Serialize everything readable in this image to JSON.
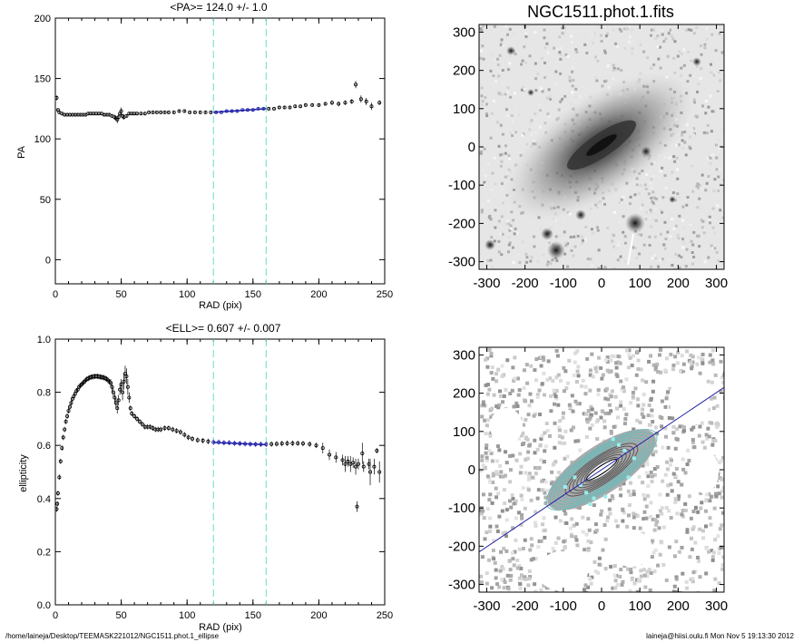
{
  "footer": {
    "path": "/home/laineja/Desktop/TEEMASK221012/NGC1511.phot.1_ellipse",
    "stamp": "laineja@hiisi.oulu.fi  Mon Nov  5 19:13:30 2012"
  },
  "colors": {
    "fit_line": "#2222aa",
    "range_line": "#66ddcc",
    "contour_outer": "#66bbbb"
  },
  "chart_data": [
    {
      "type": "scatter",
      "title": "<PA>= 124.0 +/-   1.0",
      "xlabel": "RAD (pix)",
      "ylabel": "PA",
      "xlim": [
        0,
        250
      ],
      "ylim": [
        -20,
        200
      ],
      "xticks": [
        0,
        50,
        100,
        150,
        200,
        250
      ],
      "yticks": [
        0,
        50,
        100,
        150,
        200
      ],
      "vlines": [
        120,
        160
      ],
      "points": [
        [
          1,
          134,
          2
        ],
        [
          2,
          124,
          1
        ],
        [
          3,
          122,
          1
        ],
        [
          5,
          121,
          1
        ],
        [
          7,
          120,
          1
        ],
        [
          9,
          120,
          1
        ],
        [
          11,
          120,
          1
        ],
        [
          13,
          120,
          1
        ],
        [
          15,
          120,
          1
        ],
        [
          17,
          120,
          1
        ],
        [
          19,
          120,
          1
        ],
        [
          21,
          120,
          1
        ],
        [
          23,
          120,
          1
        ],
        [
          25,
          121,
          1
        ],
        [
          27,
          121,
          1
        ],
        [
          29,
          121,
          1
        ],
        [
          31,
          121,
          1
        ],
        [
          33,
          121,
          1
        ],
        [
          35,
          121,
          1
        ],
        [
          37,
          120,
          1
        ],
        [
          39,
          120,
          1
        ],
        [
          41,
          120,
          1
        ],
        [
          43,
          119,
          1
        ],
        [
          45,
          118,
          2
        ],
        [
          46,
          117,
          2
        ],
        [
          47,
          116,
          3
        ],
        [
          48,
          118,
          2
        ],
        [
          49,
          121,
          2
        ],
        [
          50,
          123,
          3
        ],
        [
          51,
          119,
          2
        ],
        [
          52,
          118,
          2
        ],
        [
          54,
          119,
          1
        ],
        [
          56,
          121,
          1
        ],
        [
          58,
          121,
          1
        ],
        [
          60,
          121,
          1
        ],
        [
          62,
          121,
          1
        ],
        [
          65,
          121,
          1
        ],
        [
          68,
          121,
          1
        ],
        [
          71,
          122,
          1
        ],
        [
          74,
          122,
          1
        ],
        [
          77,
          122,
          1
        ],
        [
          80,
          122,
          1
        ],
        [
          83,
          122,
          1
        ],
        [
          86,
          122,
          1
        ],
        [
          90,
          122,
          1
        ],
        [
          94,
          123,
          1
        ],
        [
          98,
          123,
          1
        ],
        [
          102,
          122,
          1
        ],
        [
          106,
          122,
          1
        ],
        [
          110,
          122,
          1
        ],
        [
          114,
          122,
          1
        ],
        [
          118,
          122,
          1
        ],
        [
          122,
          122,
          1
        ],
        [
          126,
          122,
          1
        ],
        [
          130,
          123,
          1
        ],
        [
          134,
          123,
          1
        ],
        [
          138,
          123,
          1
        ],
        [
          142,
          124,
          1
        ],
        [
          146,
          124,
          1
        ],
        [
          150,
          124,
          1
        ],
        [
          154,
          125,
          1
        ],
        [
          158,
          125,
          1
        ],
        [
          162,
          125,
          1
        ],
        [
          166,
          125,
          1
        ],
        [
          170,
          126,
          1
        ],
        [
          174,
          126,
          1
        ],
        [
          178,
          126,
          1
        ],
        [
          182,
          127,
          1
        ],
        [
          186,
          127,
          1
        ],
        [
          190,
          128,
          1
        ],
        [
          195,
          128,
          1
        ],
        [
          200,
          128,
          1
        ],
        [
          205,
          129,
          1
        ],
        [
          210,
          130,
          2
        ],
        [
          215,
          129,
          2
        ],
        [
          220,
          130,
          2
        ],
        [
          225,
          131,
          2
        ],
        [
          228,
          145,
          3
        ],
        [
          232,
          133,
          3
        ],
        [
          236,
          131,
          3
        ],
        [
          240,
          127,
          3
        ],
        [
          246,
          130,
          2
        ]
      ],
      "fit_line": {
        "x": [
          120,
          160
        ],
        "y": [
          122,
          125
        ]
      }
    },
    {
      "type": "scatter",
      "title": "<ELL>= 0.607 +/-  0.007",
      "xlabel": "RAD (pix)",
      "ylabel": "ellipticity",
      "xlim": [
        0,
        250
      ],
      "ylim": [
        0,
        1.0
      ],
      "xticks": [
        0,
        50,
        100,
        150,
        200,
        250
      ],
      "yticks": [
        0.0,
        0.2,
        0.4,
        0.6,
        0.8,
        1.0
      ],
      "ytick_labels": [
        "0.0",
        "0.2",
        "0.4",
        "0.6",
        "0.8",
        "1.0"
      ],
      "vlines": [
        120,
        160
      ],
      "points": [
        [
          1,
          0.36,
          0.01
        ],
        [
          1.5,
          0.38,
          0.01
        ],
        [
          2,
          0.42,
          0.01
        ],
        [
          3,
          0.48,
          0.01
        ],
        [
          4,
          0.54,
          0.01
        ],
        [
          5,
          0.59,
          0.01
        ],
        [
          6,
          0.63,
          0.01
        ],
        [
          7,
          0.66,
          0.01
        ],
        [
          8,
          0.69,
          0.01
        ],
        [
          9,
          0.71,
          0.01
        ],
        [
          10,
          0.73,
          0.01
        ],
        [
          11,
          0.745,
          0.01
        ],
        [
          12,
          0.76,
          0.01
        ],
        [
          13,
          0.775,
          0.01
        ],
        [
          14,
          0.785,
          0.01
        ],
        [
          15,
          0.795,
          0.01
        ],
        [
          16,
          0.805,
          0.01
        ],
        [
          17,
          0.81,
          0.01
        ],
        [
          18,
          0.82,
          0.01
        ],
        [
          19,
          0.825,
          0.01
        ],
        [
          20,
          0.83,
          0.01
        ],
        [
          21,
          0.835,
          0.01
        ],
        [
          22,
          0.84,
          0.01
        ],
        [
          23,
          0.845,
          0.01
        ],
        [
          24,
          0.85,
          0.01
        ],
        [
          25,
          0.852,
          0.01
        ],
        [
          26,
          0.855,
          0.01
        ],
        [
          27,
          0.857,
          0.01
        ],
        [
          28,
          0.858,
          0.01
        ],
        [
          29,
          0.859,
          0.01
        ],
        [
          30,
          0.86,
          0.01
        ],
        [
          31,
          0.86,
          0.01
        ],
        [
          32,
          0.86,
          0.01
        ],
        [
          33,
          0.859,
          0.01
        ],
        [
          34,
          0.858,
          0.01
        ],
        [
          35,
          0.857,
          0.01
        ],
        [
          36,
          0.856,
          0.01
        ],
        [
          37,
          0.855,
          0.01
        ],
        [
          38,
          0.852,
          0.01
        ],
        [
          39,
          0.85,
          0.01
        ],
        [
          40,
          0.845,
          0.01
        ],
        [
          41,
          0.84,
          0.01
        ],
        [
          42,
          0.835,
          0.015
        ],
        [
          43,
          0.82,
          0.02
        ],
        [
          44,
          0.8,
          0.02
        ],
        [
          45,
          0.78,
          0.02
        ],
        [
          46,
          0.76,
          0.02
        ],
        [
          47,
          0.74,
          0.02
        ],
        [
          48,
          0.77,
          0.02
        ],
        [
          49,
          0.81,
          0.02
        ],
        [
          50,
          0.83,
          0.02
        ],
        [
          51,
          0.8,
          0.03
        ],
        [
          52,
          0.84,
          0.03
        ],
        [
          53,
          0.87,
          0.03
        ],
        [
          54,
          0.86,
          0.03
        ],
        [
          55,
          0.82,
          0.03
        ],
        [
          56,
          0.78,
          0.02
        ],
        [
          57,
          0.74,
          0.01
        ],
        [
          58,
          0.72,
          0.01
        ],
        [
          60,
          0.71,
          0.01
        ],
        [
          62,
          0.7,
          0.01
        ],
        [
          64,
          0.69,
          0.01
        ],
        [
          66,
          0.68,
          0.01
        ],
        [
          68,
          0.67,
          0.01
        ],
        [
          70,
          0.67,
          0.01
        ],
        [
          72,
          0.67,
          0.01
        ],
        [
          74,
          0.665,
          0.01
        ],
        [
          76,
          0.66,
          0.01
        ],
        [
          78,
          0.66,
          0.01
        ],
        [
          80,
          0.66,
          0.01
        ],
        [
          83,
          0.665,
          0.01
        ],
        [
          86,
          0.665,
          0.01
        ],
        [
          89,
          0.66,
          0.01
        ],
        [
          92,
          0.655,
          0.01
        ],
        [
          95,
          0.65,
          0.01
        ],
        [
          98,
          0.64,
          0.01
        ],
        [
          101,
          0.63,
          0.01
        ],
        [
          104,
          0.625,
          0.01
        ],
        [
          108,
          0.62,
          0.01
        ],
        [
          112,
          0.618,
          0.01
        ],
        [
          116,
          0.615,
          0.01
        ],
        [
          120,
          0.612,
          0.01
        ],
        [
          124,
          0.612,
          0.01
        ],
        [
          128,
          0.61,
          0.01
        ],
        [
          132,
          0.61,
          0.01
        ],
        [
          136,
          0.608,
          0.01
        ],
        [
          140,
          0.607,
          0.01
        ],
        [
          144,
          0.606,
          0.01
        ],
        [
          148,
          0.605,
          0.01
        ],
        [
          152,
          0.604,
          0.01
        ],
        [
          156,
          0.604,
          0.01
        ],
        [
          160,
          0.604,
          0.01
        ],
        [
          164,
          0.605,
          0.01
        ],
        [
          168,
          0.606,
          0.01
        ],
        [
          172,
          0.607,
          0.01
        ],
        [
          176,
          0.608,
          0.01
        ],
        [
          180,
          0.608,
          0.01
        ],
        [
          184,
          0.608,
          0.01
        ],
        [
          188,
          0.607,
          0.01
        ],
        [
          193,
          0.605,
          0.01
        ],
        [
          198,
          0.6,
          0.01
        ],
        [
          203,
          0.59,
          0.02
        ],
        [
          208,
          0.565,
          0.02
        ],
        [
          213,
          0.555,
          0.02
        ],
        [
          218,
          0.545,
          0.02
        ],
        [
          222,
          0.54,
          0.02
        ],
        [
          226,
          0.535,
          0.02
        ],
        [
          230,
          0.53,
          0.02
        ],
        [
          234,
          0.52,
          0.02
        ],
        [
          238,
          0.53,
          0.02
        ],
        [
          242,
          0.52,
          0.03
        ],
        [
          246,
          0.5,
          0.04
        ],
        [
          220,
          0.53,
          0.03
        ],
        [
          224,
          0.53,
          0.03
        ],
        [
          228,
          0.52,
          0.03
        ],
        [
          229,
          0.37,
          0.02
        ],
        [
          233,
          0.57,
          0.04
        ],
        [
          239,
          0.5,
          0.05
        ],
        [
          244,
          0.58,
          0.01
        ]
      ],
      "fit_line": {
        "x": [
          120,
          160
        ],
        "y": [
          0.611,
          0.603
        ]
      }
    },
    {
      "type": "heatmap",
      "title": "NGC1511.phot.1.fits",
      "xlim": [
        -320,
        320
      ],
      "ylim": [
        -320,
        320
      ],
      "xticks": [
        -300,
        -200,
        -100,
        0,
        100,
        200,
        300
      ],
      "yticks": [
        -300,
        -200,
        -100,
        0,
        100,
        200,
        300
      ]
    },
    {
      "type": "heatmap",
      "title": "",
      "xlim": [
        -320,
        320
      ],
      "ylim": [
        -320,
        320
      ],
      "xticks": [
        -300,
        -200,
        -100,
        0,
        100,
        200,
        300
      ],
      "yticks": [
        -300,
        -200,
        -100,
        0,
        100,
        200,
        300
      ],
      "pa_line": {
        "x": [
          -320,
          320
        ],
        "y": [
          -215,
          215
        ]
      },
      "ellipse": {
        "pa_deg": 34,
        "ell": 0.607
      }
    }
  ]
}
